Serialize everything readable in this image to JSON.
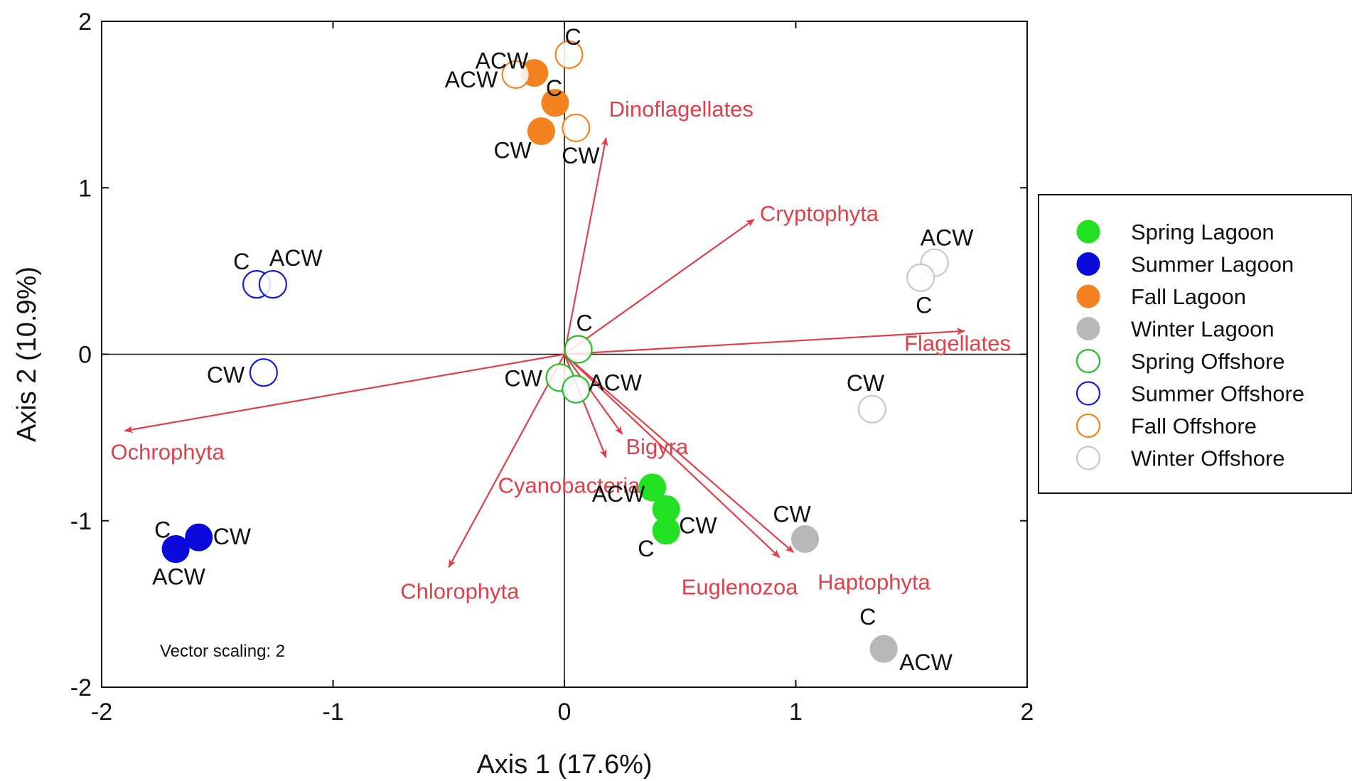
{
  "chart_data": {
    "type": "scatter",
    "xlabel": "Axis 1 (17.6%)",
    "ylabel": "Axis 2 (10.9%)",
    "xlim": [
      -2,
      2
    ],
    "ylim": [
      -2,
      2
    ],
    "x_ticks": [
      "-2",
      "-1",
      "0",
      "1",
      "2"
    ],
    "y_ticks": [
      "2",
      "1",
      "0",
      "-1",
      "-2"
    ],
    "grid": false,
    "reference_lines": "x=0 and y=0",
    "legend_position": "right",
    "annotation": "Vector scaling: 2",
    "vector_color": "#e0404a",
    "series": [
      {
        "name": "Spring Lagoon",
        "color": "#22e022",
        "filled": true,
        "points": [
          {
            "x": 0.38,
            "y": -0.8,
            "label": "ACW"
          },
          {
            "x": 0.44,
            "y": -0.93,
            "label": "CW"
          },
          {
            "x": 0.44,
            "y": -1.06,
            "label": "C"
          }
        ]
      },
      {
        "name": "Summer Lagoon",
        "color": "#0a0adc",
        "filled": true,
        "points": [
          {
            "x": -1.58,
            "y": -1.1,
            "label": "CW"
          },
          {
            "x": -1.68,
            "y": -1.17,
            "label": "C"
          },
          {
            "x": -1.68,
            "y": -1.17,
            "label": "ACW"
          }
        ]
      },
      {
        "name": "Fall Lagoon",
        "color": "#f58220",
        "filled": true,
        "points": [
          {
            "x": -0.13,
            "y": 1.69,
            "label": "ACW"
          },
          {
            "x": -0.04,
            "y": 1.51,
            "label": "C"
          },
          {
            "x": -0.1,
            "y": 1.34,
            "label": "CW"
          }
        ]
      },
      {
        "name": "Winter Lagoon",
        "color": "#b8b8b8",
        "filled": true,
        "points": [
          {
            "x": 1.04,
            "y": -1.11,
            "label": "CW"
          },
          {
            "x": 1.38,
            "y": -1.77,
            "label": "C"
          },
          {
            "x": 1.38,
            "y": -1.77,
            "label": "ACW"
          }
        ]
      },
      {
        "name": "Spring Offshore",
        "color": "#22c022",
        "filled": false,
        "points": [
          {
            "x": 0.06,
            "y": 0.03,
            "label": "C"
          },
          {
            "x": -0.02,
            "y": -0.14,
            "label": "CW"
          },
          {
            "x": 0.05,
            "y": -0.21,
            "label": "ACW"
          }
        ]
      },
      {
        "name": "Summer Offshore",
        "color": "#1a1ae0",
        "filled": false,
        "points": [
          {
            "x": -1.33,
            "y": 0.42,
            "label": "C"
          },
          {
            "x": -1.26,
            "y": 0.42,
            "label": "ACW"
          },
          {
            "x": -1.3,
            "y": -0.11,
            "label": "CW"
          }
        ]
      },
      {
        "name": "Fall Offshore",
        "color": "#f58220",
        "filled": false,
        "points": [
          {
            "x": 0.02,
            "y": 1.8,
            "label": "C"
          },
          {
            "x": -0.21,
            "y": 1.68,
            "label": "ACW"
          },
          {
            "x": 0.05,
            "y": 1.36,
            "label": "CW"
          }
        ]
      },
      {
        "name": "Winter Offshore",
        "color": "#c8c8c8",
        "filled": false,
        "points": [
          {
            "x": 1.6,
            "y": 0.55,
            "label": "ACW"
          },
          {
            "x": 1.54,
            "y": 0.46,
            "label": "C"
          },
          {
            "x": 1.33,
            "y": -0.33,
            "label": "CW"
          }
        ]
      }
    ],
    "vectors": [
      {
        "name": "Dinoflagellates",
        "x": 0.18,
        "y": 1.3
      },
      {
        "name": "Cryptophyta",
        "x": 0.82,
        "y": 0.81
      },
      {
        "name": "Flagellates",
        "x": 1.73,
        "y": 0.14
      },
      {
        "name": "Ochrophyta",
        "x": -1.9,
        "y": -0.46
      },
      {
        "name": "Bigyra",
        "x": 0.25,
        "y": -0.48
      },
      {
        "name": "Cyanobacteria",
        "x": 0.18,
        "y": -0.62
      },
      {
        "name": "Chlorophyta",
        "x": -0.5,
        "y": -1.28
      },
      {
        "name": "Haptophyta",
        "x": 0.99,
        "y": -1.19
      },
      {
        "name": "Euglenozoa",
        "x": 0.93,
        "y": -1.22
      }
    ]
  }
}
